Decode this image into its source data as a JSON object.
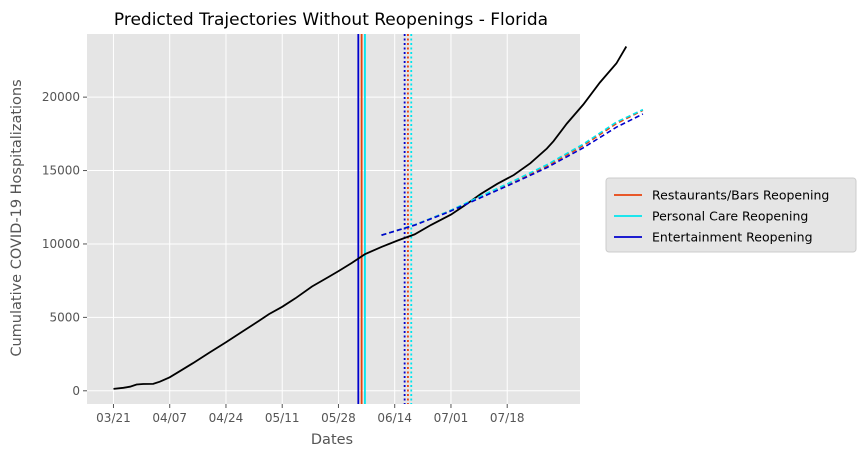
{
  "chart_data": {
    "type": "line",
    "title": "Predicted Trajectories Without Reopenings - Florida",
    "xlabel": "Dates",
    "ylabel": "Cumulative COVID-19 Hospitalizations",
    "x_start": "03/21",
    "x_ticks": [
      "03/21",
      "04/07",
      "04/24",
      "05/11",
      "05/28",
      "06/14",
      "07/01",
      "07/18"
    ],
    "y_ticks": [
      0,
      5000,
      10000,
      15000,
      20000
    ],
    "xlim": [
      "03/13",
      "08/09"
    ],
    "ylim": [
      -900,
      24300
    ],
    "grid": true,
    "legend_position": "right",
    "legend": [
      {
        "label": "Restaurants/Bars Reopening",
        "color": "#e8440e"
      },
      {
        "label": "Personal Care Reopening",
        "color": "#00e5ee"
      },
      {
        "label": "Entertainment Reopening",
        "color": "#0000cc"
      }
    ],
    "observed": {
      "color": "#000000",
      "points": [
        [
          "03/21",
          130
        ],
        [
          "03/24",
          200
        ],
        [
          "03/26",
          280
        ],
        [
          "03/28",
          430
        ],
        [
          "03/30",
          460
        ],
        [
          "04/02",
          470
        ],
        [
          "04/04",
          620
        ],
        [
          "04/07",
          920
        ],
        [
          "04/10",
          1330
        ],
        [
          "04/14",
          1880
        ],
        [
          "04/19",
          2600
        ],
        [
          "04/24",
          3300
        ],
        [
          "04/29",
          4040
        ],
        [
          "05/04",
          4770
        ],
        [
          "05/07",
          5220
        ],
        [
          "05/11",
          5720
        ],
        [
          "05/15",
          6300
        ],
        [
          "05/20",
          7100
        ],
        [
          "05/25",
          7750
        ],
        [
          "05/28",
          8150
        ],
        [
          "06/01",
          8700
        ],
        [
          "06/05",
          9300
        ],
        [
          "06/10",
          9800
        ],
        [
          "06/15",
          10240
        ],
        [
          "06/20",
          10650
        ],
        [
          "06/25",
          11300
        ],
        [
          "07/01",
          12000
        ],
        [
          "07/05",
          12600
        ],
        [
          "07/10",
          13400
        ],
        [
          "07/15",
          14100
        ],
        [
          "07/20",
          14700
        ],
        [
          "07/25",
          15500
        ],
        [
          "07/30",
          16500
        ],
        [
          "08/01",
          17000
        ],
        [
          "08/05",
          18200
        ],
        [
          "08/10",
          19500
        ],
        [
          "08/15",
          21000
        ],
        [
          "08/20",
          22300
        ],
        [
          "08/23",
          23450
        ]
      ]
    },
    "series": [
      {
        "color": "#e8440e",
        "style": "dashed",
        "points": [
          [
            "06/10",
            10600
          ],
          [
            "06/20",
            11300
          ],
          [
            "06/30",
            12200
          ],
          [
            "07/10",
            13200
          ],
          [
            "07/20",
            14200
          ],
          [
            "07/30",
            15300
          ],
          [
            "08/10",
            16700
          ],
          [
            "08/20",
            18200
          ],
          [
            "08/28",
            19100
          ]
        ]
      },
      {
        "color": "#00e5ee",
        "style": "dashed",
        "points": [
          [
            "06/10",
            10600
          ],
          [
            "06/20",
            11300
          ],
          [
            "06/30",
            12200
          ],
          [
            "07/10",
            13250
          ],
          [
            "07/20",
            14300
          ],
          [
            "07/30",
            15400
          ],
          [
            "08/10",
            16800
          ],
          [
            "08/20",
            18300
          ],
          [
            "08/28",
            19150
          ]
        ]
      },
      {
        "color": "#0000cc",
        "style": "dashed",
        "points": [
          [
            "06/10",
            10600
          ],
          [
            "06/20",
            11280
          ],
          [
            "06/30",
            12150
          ],
          [
            "07/10",
            13150
          ],
          [
            "07/20",
            14150
          ],
          [
            "07/30",
            15200
          ],
          [
            "08/10",
            16550
          ],
          [
            "08/20",
            17950
          ],
          [
            "08/28",
            18850
          ]
        ]
      }
    ],
    "reopening_lines": [
      {
        "color": "#0000cc",
        "date": "06/03",
        "style": "solid"
      },
      {
        "color": "#e8440e",
        "date": "06/04",
        "style": "solid"
      },
      {
        "color": "#00e5ee",
        "date": "06/05",
        "style": "solid"
      },
      {
        "color": "#0000cc",
        "date": "06/17",
        "style": "dotted"
      },
      {
        "color": "#e8440e",
        "date": "06/18",
        "style": "dotted"
      },
      {
        "color": "#00e5ee",
        "date": "06/19",
        "style": "dotted"
      }
    ]
  }
}
